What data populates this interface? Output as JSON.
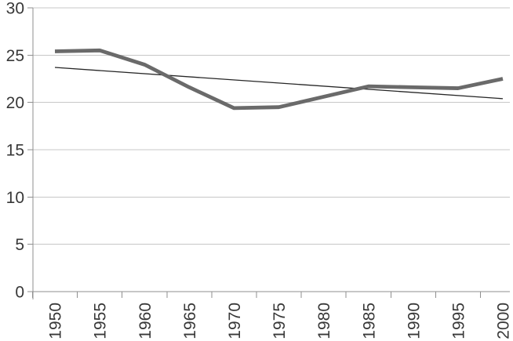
{
  "chart_data": {
    "type": "line",
    "title": "",
    "xlabel": "",
    "ylabel": "",
    "x_categories": [
      "1950",
      "1955",
      "1960",
      "1965",
      "1970",
      "1975",
      "1980",
      "1985",
      "1990",
      "1995",
      "2000"
    ],
    "series": [
      {
        "name": "main-series",
        "values": [
          25.4,
          25.5,
          24.0,
          21.6,
          19.4,
          19.5,
          20.6,
          21.7,
          21.6,
          21.5,
          22.5
        ],
        "color": "#6a6a6a",
        "stroke_width": 4.8
      }
    ],
    "trendline": {
      "name": "linear-trendline",
      "start_value": 23.7,
      "end_value": 20.4,
      "color": "#262626",
      "stroke_width": 1.3
    },
    "ylim": [
      0,
      30
    ],
    "ytick_step": 5,
    "ytick_labels": [
      "0",
      "5",
      "10",
      "15",
      "20",
      "25",
      "30"
    ],
    "x_label_rotation": -90,
    "grid": true,
    "legend_position": "none",
    "colors": {
      "gridline": "#c7c7c7",
      "axis": "#8f8f8f",
      "tick_label": "#383838",
      "background": "#ffffff"
    }
  }
}
